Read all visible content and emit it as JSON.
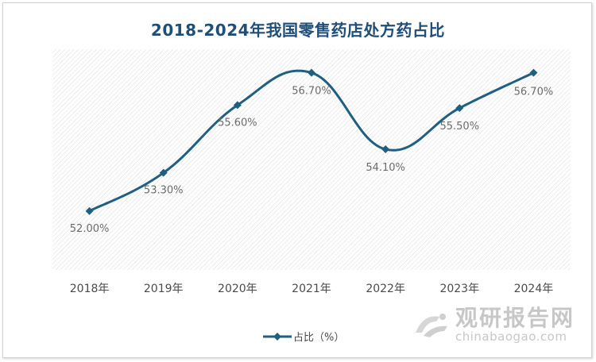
{
  "chart_data": {
    "type": "line",
    "title": "2018-2024年我国零售药店处方药占比",
    "categories": [
      "2018年",
      "2019年",
      "2020年",
      "2021年",
      "2022年",
      "2023年",
      "2024年"
    ],
    "series": [
      {
        "name": "占比（%）",
        "values": [
          52.0,
          53.3,
          55.6,
          56.7,
          54.1,
          55.5,
          56.7
        ],
        "data_labels": [
          "52.00%",
          "53.30%",
          "55.60%",
          "56.70%",
          "54.10%",
          "55.50%",
          "56.70%"
        ],
        "color": "#1f5f82",
        "marker": "diamond",
        "smooth": true
      }
    ],
    "ylim": [
      50,
      57.5
    ],
    "grid": false,
    "legend_position": "bottom"
  },
  "watermark": {
    "name": "观研报告网",
    "url": "chinabaogao.com"
  },
  "colors": {
    "title": "#1f4e79",
    "series": "#1f5f82",
    "plot_hatch": "#d9d9d9"
  }
}
